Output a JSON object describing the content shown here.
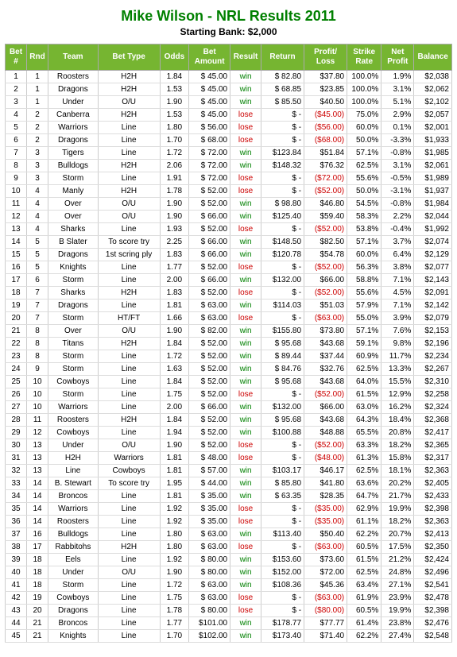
{
  "header": {
    "title": "Mike Wilson - NRL Results 2011",
    "subtitle": "Starting Bank: $2,000"
  },
  "columns": [
    "Bet\n#",
    "Rnd",
    "Team",
    "Bet Type",
    "Odds",
    "Bet\nAmount",
    "Result",
    "Return",
    "Profit/\nLoss",
    "Strike\nRate",
    "Net\nProfit",
    "Balance"
  ],
  "rows": [
    {
      "n": 1,
      "r": 1,
      "team": "Roosters",
      "bt": "H2H",
      "odds": "1.84",
      "amt": "$ 45.00",
      "res": "win",
      "ret": "$  82.80",
      "pl": "$37.80",
      "sr": "100.0%",
      "np": "1.9%",
      "bal": "$2,038",
      "sep": true
    },
    {
      "n": 2,
      "r": 1,
      "team": "Dragons",
      "bt": "H2H",
      "odds": "1.53",
      "amt": "$ 45.00",
      "res": "win",
      "ret": "$  68.85",
      "pl": "$23.85",
      "sr": "100.0%",
      "np": "3.1%",
      "bal": "$2,062"
    },
    {
      "n": 3,
      "r": 1,
      "team": "Under",
      "bt": "O/U",
      "odds": "1.90",
      "amt": "$ 45.00",
      "res": "win",
      "ret": "$  85.50",
      "pl": "$40.50",
      "sr": "100.0%",
      "np": "5.1%",
      "bal": "$2,102"
    },
    {
      "n": 4,
      "r": 2,
      "team": "Canberra",
      "bt": "H2H",
      "odds": "1.53",
      "amt": "$ 45.00",
      "res": "lose",
      "ret": "$     -",
      "pl": "($45.00)",
      "sr": "75.0%",
      "np": "2.9%",
      "bal": "$2,057",
      "sep": true
    },
    {
      "n": 5,
      "r": 2,
      "team": "Warriors",
      "bt": "Line",
      "odds": "1.80",
      "amt": "$ 56.00",
      "res": "lose",
      "ret": "$     -",
      "pl": "($56.00)",
      "sr": "60.0%",
      "np": "0.1%",
      "bal": "$2,001"
    },
    {
      "n": 6,
      "r": 2,
      "team": "Dragons",
      "bt": "Line",
      "odds": "1.70",
      "amt": "$ 68.00",
      "res": "lose",
      "ret": "$     -",
      "pl": "($68.00)",
      "sr": "50.0%",
      "np": "-3.3%",
      "bal": "$1,933"
    },
    {
      "n": 7,
      "r": 3,
      "team": "Tigers",
      "bt": "Line",
      "odds": "1.72",
      "amt": "$ 72.00",
      "res": "win",
      "ret": "$123.84",
      "pl": "$51.84",
      "sr": "57.1%",
      "np": "-0.8%",
      "bal": "$1,985",
      "sep": true
    },
    {
      "n": 8,
      "r": 3,
      "team": "Bulldogs",
      "bt": "H2H",
      "odds": "2.06",
      "amt": "$ 72.00",
      "res": "win",
      "ret": "$148.32",
      "pl": "$76.32",
      "sr": "62.5%",
      "np": "3.1%",
      "bal": "$2,061"
    },
    {
      "n": 9,
      "r": 3,
      "team": "Storm",
      "bt": "Line",
      "odds": "1.91",
      "amt": "$ 72.00",
      "res": "lose",
      "ret": "$     -",
      "pl": "($72.00)",
      "sr": "55.6%",
      "np": "-0.5%",
      "bal": "$1,989"
    },
    {
      "n": 10,
      "r": 4,
      "team": "Manly",
      "bt": "H2H",
      "odds": "1.78",
      "amt": "$ 52.00",
      "res": "lose",
      "ret": "$     -",
      "pl": "($52.00)",
      "sr": "50.0%",
      "np": "-3.1%",
      "bal": "$1,937",
      "sep": true
    },
    {
      "n": 11,
      "r": 4,
      "team": "Over",
      "bt": "O/U",
      "odds": "1.90",
      "amt": "$ 52.00",
      "res": "win",
      "ret": "$  98.80",
      "pl": "$46.80",
      "sr": "54.5%",
      "np": "-0.8%",
      "bal": "$1,984"
    },
    {
      "n": 12,
      "r": 4,
      "team": "Over",
      "bt": "O/U",
      "odds": "1.90",
      "amt": "$ 66.00",
      "res": "win",
      "ret": "$125.40",
      "pl": "$59.40",
      "sr": "58.3%",
      "np": "2.2%",
      "bal": "$2,044"
    },
    {
      "n": 13,
      "r": 4,
      "team": "Sharks",
      "bt": "Line",
      "odds": "1.93",
      "amt": "$ 52.00",
      "res": "lose",
      "ret": "$     -",
      "pl": "($52.00)",
      "sr": "53.8%",
      "np": "-0.4%",
      "bal": "$1,992"
    },
    {
      "n": 14,
      "r": 5,
      "team": "B Slater",
      "bt": "To score try",
      "odds": "2.25",
      "amt": "$ 66.00",
      "res": "win",
      "ret": "$148.50",
      "pl": "$82.50",
      "sr": "57.1%",
      "np": "3.7%",
      "bal": "$2,074",
      "sep": true
    },
    {
      "n": 15,
      "r": 5,
      "team": "Dragons",
      "bt": "1st scring ply",
      "odds": "1.83",
      "amt": "$ 66.00",
      "res": "win",
      "ret": "$120.78",
      "pl": "$54.78",
      "sr": "60.0%",
      "np": "6.4%",
      "bal": "$2,129"
    },
    {
      "n": 16,
      "r": 5,
      "team": "Knights",
      "bt": "Line",
      "odds": "1.77",
      "amt": "$ 52.00",
      "res": "lose",
      "ret": "$     -",
      "pl": "($52.00)",
      "sr": "56.3%",
      "np": "3.8%",
      "bal": "$2,077"
    },
    {
      "n": 17,
      "r": 6,
      "team": "Storm",
      "bt": "Line",
      "odds": "2.00",
      "amt": "$ 66.00",
      "res": "win",
      "ret": "$132.00",
      "pl": "$66.00",
      "sr": "58.8%",
      "np": "7.1%",
      "bal": "$2,143",
      "sep": true
    },
    {
      "n": 18,
      "r": 7,
      "team": "Sharks",
      "bt": "H2H",
      "odds": "1.83",
      "amt": "$ 52.00",
      "res": "lose",
      "ret": "$     -",
      "pl": "($52.00)",
      "sr": "55.6%",
      "np": "4.5%",
      "bal": "$2,091",
      "sep": true
    },
    {
      "n": 19,
      "r": 7,
      "team": "Dragons",
      "bt": "Line",
      "odds": "1.81",
      "amt": "$ 63.00",
      "res": "win",
      "ret": "$114.03",
      "pl": "$51.03",
      "sr": "57.9%",
      "np": "7.1%",
      "bal": "$2,142"
    },
    {
      "n": 20,
      "r": 7,
      "team": "Storm",
      "bt": "HT/FT",
      "odds": "1.66",
      "amt": "$ 63.00",
      "res": "lose",
      "ret": "$     -",
      "pl": "($63.00)",
      "sr": "55.0%",
      "np": "3.9%",
      "bal": "$2,079"
    },
    {
      "n": 21,
      "r": 8,
      "team": "Over",
      "bt": "O/U",
      "odds": "1.90",
      "amt": "$ 82.00",
      "res": "win",
      "ret": "$155.80",
      "pl": "$73.80",
      "sr": "57.1%",
      "np": "7.6%",
      "bal": "$2,153",
      "sep": true
    },
    {
      "n": 22,
      "r": 8,
      "team": "Titans",
      "bt": "H2H",
      "odds": "1.84",
      "amt": "$ 52.00",
      "res": "win",
      "ret": "$  95.68",
      "pl": "$43.68",
      "sr": "59.1%",
      "np": "9.8%",
      "bal": "$2,196"
    },
    {
      "n": 23,
      "r": 8,
      "team": "Storm",
      "bt": "Line",
      "odds": "1.72",
      "amt": "$ 52.00",
      "res": "win",
      "ret": "$  89.44",
      "pl": "$37.44",
      "sr": "60.9%",
      "np": "11.7%",
      "bal": "$2,234"
    },
    {
      "n": 24,
      "r": 9,
      "team": "Storm",
      "bt": "Line",
      "odds": "1.63",
      "amt": "$ 52.00",
      "res": "win",
      "ret": "$  84.76",
      "pl": "$32.76",
      "sr": "62.5%",
      "np": "13.3%",
      "bal": "$2,267",
      "sep": true
    },
    {
      "n": 25,
      "r": 10,
      "team": "Cowboys",
      "bt": "Line",
      "odds": "1.84",
      "amt": "$ 52.00",
      "res": "win",
      "ret": "$  95.68",
      "pl": "$43.68",
      "sr": "64.0%",
      "np": "15.5%",
      "bal": "$2,310",
      "sep": true
    },
    {
      "n": 26,
      "r": 10,
      "team": "Storm",
      "bt": "Line",
      "odds": "1.75",
      "amt": "$ 52.00",
      "res": "lose",
      "ret": "$     -",
      "pl": "($52.00)",
      "sr": "61.5%",
      "np": "12.9%",
      "bal": "$2,258"
    },
    {
      "n": 27,
      "r": 10,
      "team": "Warriors",
      "bt": "Line",
      "odds": "2.00",
      "amt": "$ 66.00",
      "res": "win",
      "ret": "$132.00",
      "pl": "$66.00",
      "sr": "63.0%",
      "np": "16.2%",
      "bal": "$2,324"
    },
    {
      "n": 28,
      "r": 11,
      "team": "Roosters",
      "bt": "H2H",
      "odds": "1.84",
      "amt": "$ 52.00",
      "res": "win",
      "ret": "$  95.68",
      "pl": "$43.68",
      "sr": "64.3%",
      "np": "18.4%",
      "bal": "$2,368",
      "sep": true
    },
    {
      "n": 29,
      "r": 12,
      "team": "Cowboys",
      "bt": "Line",
      "odds": "1.94",
      "amt": "$ 52.00",
      "res": "win",
      "ret": "$100.88",
      "pl": "$48.88",
      "sr": "65.5%",
      "np": "20.8%",
      "bal": "$2,417",
      "sep": true
    },
    {
      "n": 30,
      "r": 13,
      "team": "Under",
      "bt": "O/U",
      "odds": "1.90",
      "amt": "$ 52.00",
      "res": "lose",
      "ret": "$     -",
      "pl": "($52.00)",
      "sr": "63.3%",
      "np": "18.2%",
      "bal": "$2,365",
      "sep": true
    },
    {
      "n": 31,
      "r": 13,
      "team": "H2H",
      "bt": "Warriors",
      "odds": "1.81",
      "amt": "$ 48.00",
      "res": "lose",
      "ret": "$     -",
      "pl": "($48.00)",
      "sr": "61.3%",
      "np": "15.8%",
      "bal": "$2,317"
    },
    {
      "n": 32,
      "r": 13,
      "team": "Line",
      "bt": "Cowboys",
      "odds": "1.81",
      "amt": "$ 57.00",
      "res": "win",
      "ret": "$103.17",
      "pl": "$46.17",
      "sr": "62.5%",
      "np": "18.1%",
      "bal": "$2,363"
    },
    {
      "n": 33,
      "r": 14,
      "team": "B. Stewart",
      "bt": "To score try",
      "odds": "1.95",
      "amt": "$ 44.00",
      "res": "win",
      "ret": "$  85.80",
      "pl": "$41.80",
      "sr": "63.6%",
      "np": "20.2%",
      "bal": "$2,405",
      "sep": true
    },
    {
      "n": 34,
      "r": 14,
      "team": "Broncos",
      "bt": "Line",
      "odds": "1.81",
      "amt": "$ 35.00",
      "res": "win",
      "ret": "$  63.35",
      "pl": "$28.35",
      "sr": "64.7%",
      "np": "21.7%",
      "bal": "$2,433"
    },
    {
      "n": 35,
      "r": 14,
      "team": "Warriors",
      "bt": "Line",
      "odds": "1.92",
      "amt": "$ 35.00",
      "res": "lose",
      "ret": "$     -",
      "pl": "($35.00)",
      "sr": "62.9%",
      "np": "19.9%",
      "bal": "$2,398"
    },
    {
      "n": 36,
      "r": 14,
      "team": "Roosters",
      "bt": "Line",
      "odds": "1.92",
      "amt": "$ 35.00",
      "res": "lose",
      "ret": "$     -",
      "pl": "($35.00)",
      "sr": "61.1%",
      "np": "18.2%",
      "bal": "$2,363"
    },
    {
      "n": 37,
      "r": 16,
      "team": "Bulldogs",
      "bt": "Line",
      "odds": "1.80",
      "amt": "$ 63.00",
      "res": "win",
      "ret": "$113.40",
      "pl": "$50.40",
      "sr": "62.2%",
      "np": "20.7%",
      "bal": "$2,413",
      "sep": true
    },
    {
      "n": 38,
      "r": 17,
      "team": "Rabbitohs",
      "bt": "H2H",
      "odds": "1.80",
      "amt": "$ 63.00",
      "res": "lose",
      "ret": "$     -",
      "pl": "($63.00)",
      "sr": "60.5%",
      "np": "17.5%",
      "bal": "$2,350",
      "sep": true
    },
    {
      "n": 39,
      "r": 18,
      "team": "Eels",
      "bt": "Line",
      "odds": "1.92",
      "amt": "$ 80.00",
      "res": "win",
      "ret": "$153.60",
      "pl": "$73.60",
      "sr": "61.5%",
      "np": "21.2%",
      "bal": "$2,424",
      "sep": true
    },
    {
      "n": 40,
      "r": 18,
      "team": "Under",
      "bt": "O/U",
      "odds": "1.90",
      "amt": "$ 80.00",
      "res": "win",
      "ret": "$152.00",
      "pl": "$72.00",
      "sr": "62.5%",
      "np": "24.8%",
      "bal": "$2,496"
    },
    {
      "n": 41,
      "r": 18,
      "team": "Storm",
      "bt": "Line",
      "odds": "1.72",
      "amt": "$ 63.00",
      "res": "win",
      "ret": "$108.36",
      "pl": "$45.36",
      "sr": "63.4%",
      "np": "27.1%",
      "bal": "$2,541"
    },
    {
      "n": 42,
      "r": 19,
      "team": "Cowboys",
      "bt": "Line",
      "odds": "1.75",
      "amt": "$ 63.00",
      "res": "lose",
      "ret": "$     -",
      "pl": "($63.00)",
      "sr": "61.9%",
      "np": "23.9%",
      "bal": "$2,478",
      "sep": true
    },
    {
      "n": 43,
      "r": 20,
      "team": "Dragons",
      "bt": "Line",
      "odds": "1.78",
      "amt": "$ 80.00",
      "res": "lose",
      "ret": "$     -",
      "pl": "($80.00)",
      "sr": "60.5%",
      "np": "19.9%",
      "bal": "$2,398",
      "sep": true
    },
    {
      "n": 44,
      "r": 21,
      "team": "Broncos",
      "bt": "Line",
      "odds": "1.77",
      "amt": "$101.00",
      "res": "win",
      "ret": "$178.77",
      "pl": "$77.77",
      "sr": "61.4%",
      "np": "23.8%",
      "bal": "$2,476",
      "sep": true
    },
    {
      "n": 45,
      "r": 21,
      "team": "Knights",
      "bt": "Line",
      "odds": "1.70",
      "amt": "$102.00",
      "res": "win",
      "ret": "$173.40",
      "pl": "$71.40",
      "sr": "62.2%",
      "np": "27.4%",
      "bal": "$2,548"
    }
  ]
}
